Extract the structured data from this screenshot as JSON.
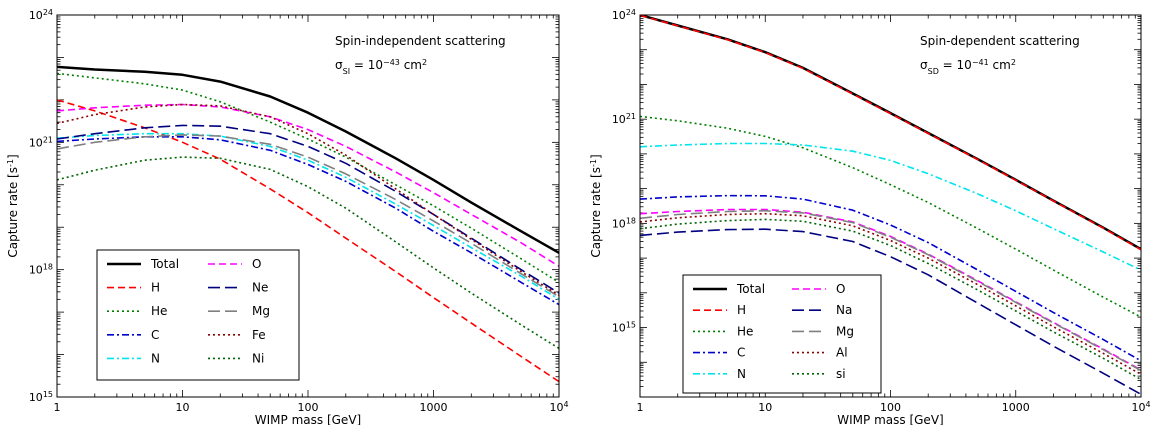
{
  "chart_data": [
    {
      "type": "line",
      "xscale": "log",
      "yscale": "log",
      "xlim": [
        1,
        10000
      ],
      "ylim": [
        1000000000000000.0,
        1e+24
      ],
      "x_ticks": [
        1,
        10,
        100,
        1000,
        10000
      ],
      "x_tick_labels": [
        "1",
        "10",
        "100",
        "1000",
        "10^4"
      ],
      "y_ticks": [
        1000000000000000.0,
        1e+18,
        1e+21,
        1e+24
      ],
      "y_tick_labels": [
        "10^15",
        "10^18",
        "10^21",
        "10^24"
      ],
      "xlabel": "WIMP mass [GeV]",
      "ylabel": "Capture rate [s^-1]",
      "annotation": {
        "title": "Spin-independent scattering",
        "sigma_symbol": "σ",
        "sigma_sub": "SI",
        "eq_base": " = 10",
        "eq_exp": "−43",
        "eq_unit": " cm",
        "eq_unit_exp": "2"
      },
      "legend": {
        "placement": "lower-left",
        "columns": 2
      },
      "series": [
        {
          "name": "Total",
          "color": "#000000",
          "style": "solid",
          "x": [
            1,
            2,
            5,
            10,
            20,
            50,
            100,
            200,
            500,
            1000,
            2000,
            5000,
            10000
          ],
          "y": [
            6e+22,
            5.2e+22,
            4.6e+22,
            3.9e+22,
            2.7e+22,
            1.2e+22,
            5e+21,
            1.8e+21,
            4.2e+20,
            1.3e+20,
            3.8e+19,
            8e+18,
            2.5e+18
          ]
        },
        {
          "name": "H",
          "color": "#ff0000",
          "style": "dashed",
          "x": [
            1,
            2,
            5,
            10,
            20,
            50,
            100,
            200,
            500,
            1000,
            2000,
            5000,
            10000
          ],
          "y": [
            1e+22,
            5.5e+21,
            2.2e+21,
            1e+21,
            4e+20,
            8e+19,
            2.2e+19,
            5.5e+18,
            9e+17,
            2.2e+17,
            5.5e+16,
            9000000000000000.0,
            2300000000000000.0
          ]
        },
        {
          "name": "He",
          "color": "#008000",
          "style": "dotted",
          "x": [
            1,
            2,
            5,
            10,
            20,
            50,
            100,
            200,
            500,
            1000,
            2000,
            5000,
            10000
          ],
          "y": [
            4.2e+22,
            3.3e+22,
            2.4e+22,
            1.7e+22,
            9e+21,
            3e+21,
            1.2e+21,
            4.5e+20,
            1e+20,
            3.2e+19,
            9.5e+18,
            1.8e+18,
            5e+17
          ]
        },
        {
          "name": "C",
          "color": "#0000cc",
          "style": "dashdot",
          "x": [
            1,
            2,
            5,
            10,
            20,
            50,
            100,
            200,
            500,
            1000,
            2000,
            5000,
            10000
          ],
          "y": [
            1.05e+21,
            1.2e+21,
            1.35e+21,
            1.35e+21,
            1.15e+21,
            6.5e+20,
            3e+20,
            1.2e+20,
            2.8e+19,
            8e+18,
            2.5e+18,
            5e+17,
            1.5e+17
          ]
        },
        {
          "name": "N",
          "color": "#00e5ee",
          "style": "dashdot",
          "x": [
            1,
            2,
            5,
            10,
            20,
            50,
            100,
            200,
            500,
            1000,
            2000,
            5000,
            10000
          ],
          "y": [
            1.25e+21,
            1.45e+21,
            1.6e+21,
            1.6e+21,
            1.4e+21,
            8e+20,
            3.8e+20,
            1.5e+20,
            3.5e+19,
            1.1e+19,
            3.3e+18,
            7e+17,
            2e+17
          ]
        },
        {
          "name": "O",
          "color": "#ff00ff",
          "style": "dashed",
          "x": [
            1,
            2,
            5,
            10,
            20,
            50,
            100,
            200,
            500,
            1000,
            2000,
            5000,
            10000
          ],
          "y": [
            5.5e+21,
            6.5e+21,
            7.5e+21,
            7.8e+21,
            6.8e+21,
            4e+21,
            2e+21,
            8e+20,
            2e+20,
            6.5e+19,
            2e+19,
            4.3e+18,
            1.2e+18
          ]
        },
        {
          "name": "Ne",
          "color": "#000080",
          "style": "longdash",
          "x": [
            1,
            2,
            5,
            10,
            20,
            50,
            100,
            200,
            500,
            1000,
            2000,
            5000,
            10000
          ],
          "y": [
            1.2e+21,
            1.6e+21,
            2.2e+21,
            2.5e+21,
            2.4e+21,
            1.6e+21,
            8e+20,
            3.2e+20,
            7e+19,
            2e+19,
            5.5e+18,
            1e+18,
            2.8e+17
          ]
        },
        {
          "name": "Mg",
          "color": "#808080",
          "style": "longdash",
          "x": [
            1,
            2,
            5,
            10,
            20,
            50,
            100,
            200,
            500,
            1000,
            2000,
            5000,
            10000
          ],
          "y": [
            7e+20,
            1e+21,
            1.35e+21,
            1.5e+21,
            1.4e+21,
            9e+20,
            4.5e+20,
            1.8e+20,
            4.5e+19,
            1.4e+19,
            4.2e+18,
            8e+17,
            2.3e+17
          ]
        },
        {
          "name": "Fe",
          "color": "#8b0000",
          "style": "dotted",
          "x": [
            1,
            2,
            5,
            10,
            20,
            50,
            100,
            200,
            500,
            1000,
            2000,
            5000,
            10000
          ],
          "y": [
            2.8e+21,
            4.5e+21,
            6.8e+21,
            7.8e+21,
            7.2e+21,
            4e+21,
            1.6e+21,
            5e+20,
            8e+19,
            2e+19,
            5.2e+18,
            9e+17,
            2.5e+17
          ]
        },
        {
          "name": "Ni",
          "color": "#006400",
          "style": "dotted",
          "x": [
            1,
            2,
            5,
            10,
            20,
            50,
            100,
            200,
            500,
            1000,
            2000,
            5000,
            10000
          ],
          "y": [
            1.3e+20,
            2.2e+20,
            3.8e+20,
            4.5e+20,
            4.2e+20,
            2.3e+20,
            9e+19,
            2.8e+19,
            4.5e+18,
            1.1e+18,
            2.8e+17,
            5e+16,
            1.4e+16
          ]
        }
      ]
    },
    {
      "type": "line",
      "xscale": "log",
      "yscale": "log",
      "xlim": [
        1,
        10000
      ],
      "ylim": [
        10000000000000.0,
        1e+24
      ],
      "x_ticks": [
        1,
        10,
        100,
        1000,
        10000
      ],
      "x_tick_labels": [
        "1",
        "10",
        "100",
        "1000",
        "10^4"
      ],
      "y_ticks": [
        1000000000000000.0,
        1e+18,
        1e+21,
        1e+24
      ],
      "y_tick_labels": [
        "10^15",
        "10^18",
        "10^21",
        "10^24"
      ],
      "xlabel": "WIMP mass [GeV]",
      "ylabel": "Capture rate [s^-1]",
      "annotation": {
        "title": "Spin-dependent scattering",
        "sigma_symbol": "σ",
        "sigma_sub": "SD",
        "eq_base": " = 10",
        "eq_exp": "−41",
        "eq_unit": " cm",
        "eq_unit_exp": "2"
      },
      "legend": {
        "placement": "lower-left",
        "columns": 2
      },
      "series": [
        {
          "name": "Total",
          "color": "#000000",
          "style": "solid",
          "x": [
            1,
            2,
            5,
            10,
            20,
            50,
            100,
            200,
            500,
            1000,
            2000,
            5000,
            10000
          ],
          "y": [
            1e+24,
            5e+23,
            2e+23,
            8.5e+22,
            3e+22,
            5.5e+21,
            1.5e+21,
            4e+20,
            7e+19,
            1.8e+19,
            4.5e+18,
            7.5e+17,
            1.8e+17
          ]
        },
        {
          "name": "H",
          "color": "#ff0000",
          "style": "dashed",
          "x": [
            1,
            2,
            5,
            10,
            20,
            50,
            100,
            200,
            500,
            1000,
            2000,
            5000,
            10000
          ],
          "y": [
            9.8e+23,
            4.9e+23,
            1.95e+23,
            8.3e+22,
            2.9e+22,
            5.3e+21,
            1.45e+21,
            3.9e+20,
            6.8e+19,
            1.75e+19,
            4.4e+18,
            7.3e+17,
            1.75e+17
          ]
        },
        {
          "name": "He",
          "color": "#008000",
          "style": "dotted",
          "x": [
            1,
            2,
            5,
            10,
            20,
            50,
            100,
            200,
            500,
            1000,
            2000,
            5000,
            10000
          ],
          "y": [
            1.2e+21,
            9e+20,
            5.5e+20,
            3.2e+20,
            1.5e+20,
            4e+19,
            1.3e+19,
            4e+18,
            7e+17,
            1.8e+17,
            4.5e+16,
            7500000000000000.0,
            2000000000000000.0
          ]
        },
        {
          "name": "C",
          "color": "#0000cc",
          "style": "dashdot",
          "x": [
            1,
            2,
            5,
            10,
            20,
            50,
            100,
            200,
            500,
            1000,
            2000,
            5000,
            10000
          ],
          "y": [
            5e+18,
            5.8e+18,
            6.3e+18,
            6.2e+18,
            5e+18,
            2.4e+18,
            9e+17,
            2.8e+17,
            4.5e+16,
            1.1e+16,
            2700000000000000.0,
            450000000000000.0,
            110000000000000.0
          ]
        },
        {
          "name": "N",
          "color": "#00e5ee",
          "style": "dashdot",
          "x": [
            1,
            2,
            5,
            10,
            20,
            50,
            100,
            200,
            500,
            1000,
            2000,
            5000,
            10000
          ],
          "y": [
            1.6e+20,
            1.8e+20,
            2e+20,
            2e+20,
            1.8e+20,
            1.2e+20,
            6.5e+19,
            2.7e+19,
            7e+18,
            2.3e+18,
            7e+17,
            1.5e+17,
            4.5e+16
          ]
        },
        {
          "name": "O",
          "color": "#ff00ff",
          "style": "dashed",
          "x": [
            1,
            2,
            5,
            10,
            20,
            50,
            100,
            200,
            500,
            1000,
            2000,
            5000,
            10000
          ],
          "y": [
            1.9e+18,
            2.2e+18,
            2.5e+18,
            2.5e+18,
            2.1e+18,
            1.1e+18,
            4.2e+17,
            1.3e+17,
            2.2e+16,
            5500000000000000.0,
            1400000000000000.0,
            240000000000000.0,
            60000000000000.0
          ]
        },
        {
          "name": "Na",
          "color": "#000080",
          "style": "longdash",
          "x": [
            1,
            2,
            5,
            10,
            20,
            50,
            100,
            200,
            500,
            1000,
            2000,
            5000,
            10000
          ],
          "y": [
            4.5e+17,
            5.6e+17,
            6.6e+17,
            6.8e+17,
            5.8e+17,
            3e+17,
            1.1e+17,
            3.3e+16,
            5000000000000000.0,
            1200000000000000.0,
            290000000000000.0,
            48000000000000.0,
            12000000000000.0
          ]
        },
        {
          "name": "Mg",
          "color": "#808080",
          "style": "longdash",
          "x": [
            1,
            2,
            5,
            10,
            20,
            50,
            100,
            200,
            500,
            1000,
            2000,
            5000,
            10000
          ],
          "y": [
            1.4e+18,
            1.8e+18,
            2.2e+18,
            2.3e+18,
            2e+18,
            1.05e+18,
            4e+17,
            1.25e+17,
            2.1e+16,
            5300000000000000.0,
            1350000000000000.0,
            230000000000000.0,
            58000000000000.0
          ]
        },
        {
          "name": "Al",
          "color": "#8b0000",
          "style": "dotted",
          "x": [
            1,
            2,
            5,
            10,
            20,
            50,
            100,
            200,
            500,
            1000,
            2000,
            5000,
            10000
          ],
          "y": [
            1.1e+18,
            1.45e+18,
            1.8e+18,
            1.9e+18,
            1.65e+18,
            8.5e+17,
            3.2e+17,
            1e+17,
            1.7e+16,
            4200000000000000.0,
            1050000000000000.0,
            180000000000000.0,
            45000000000000.0
          ]
        },
        {
          "name": "si",
          "color": "#006400",
          "style": "dotted",
          "x": [
            1,
            2,
            5,
            10,
            20,
            50,
            100,
            200,
            500,
            1000,
            2000,
            5000,
            10000
          ],
          "y": [
            7e+17,
            9.5e+17,
            1.2e+18,
            1.3e+18,
            1.15e+18,
            6e+17,
            2.3e+17,
            7e+16,
            1.2e+16,
            3000000000000000.0,
            750000000000000.0,
            130000000000000.0,
            32000000000000.0
          ]
        }
      ]
    }
  ]
}
